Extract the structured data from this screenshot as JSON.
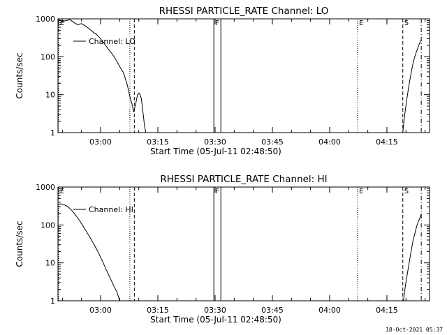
{
  "timestamp": "18-Oct-2021 05:37",
  "chart_data": [
    {
      "type": "line",
      "title": "RHESSI PARTICLE_RATE Channel: LO",
      "xlabel": "Start Time (05-Jul-11 02:48:50)",
      "ylabel": "Counts/sec",
      "yscale": "log",
      "ylim": [
        1,
        1000
      ],
      "xlim": [
        "02:48:50",
        "04:26:10"
      ],
      "x_ticks": [
        "03:00",
        "03:15",
        "03:30",
        "03:45",
        "04:00",
        "04:15"
      ],
      "y_ticks": [
        "1",
        "10",
        "100",
        "1000"
      ],
      "legend": "Channel: LO",
      "markers": [
        {
          "label": "E",
          "time": "02:49:00",
          "style": "dotted"
        },
        {
          "label": "",
          "time": "03:07:40",
          "style": "dotted"
        },
        {
          "label": "",
          "time": "03:08:50",
          "style": "dashed"
        },
        {
          "label": "F",
          "time": "03:29:40",
          "style": "solid"
        },
        {
          "label": "",
          "time": "03:31:30",
          "style": "solid"
        },
        {
          "label": "E",
          "time": "04:07:20",
          "style": "dotted"
        },
        {
          "label": "S",
          "time": "04:19:10",
          "style": "dashed"
        },
        {
          "label": "",
          "time": "04:24:00",
          "style": "dashdot"
        }
      ],
      "series": [
        {
          "segments": [
            {
              "x": [
                "02:48:50",
                "02:50:00",
                "02:51:00",
                "02:52:00",
                "02:53:00",
                "02:54:00",
                "02:55:00",
                "02:56:00",
                "02:57:00",
                "02:58:00",
                "02:59:00",
                "03:00:00",
                "03:01:00",
                "03:02:00",
                "03:03:00",
                "03:04:00",
                "03:05:00",
                "03:06:00",
                "03:07:00",
                "03:07:40",
                "03:08:10",
                "03:08:40",
                "03:09:10",
                "03:09:40",
                "03:10:10",
                "03:10:40",
                "03:11:10",
                "03:11:30",
                "03:11:50"
              ],
              "y": [
                1000,
                850,
                900,
                950,
                800,
                700,
                750,
                650,
                550,
                450,
                380,
                300,
                220,
                160,
                120,
                85,
                55,
                38,
                18,
                9,
                6,
                3.5,
                5.5,
                10,
                11,
                8,
                3,
                1.5,
                1
              ]
            },
            {
              "x": [
                "04:19:10",
                "04:19:40",
                "04:20:10",
                "04:20:40",
                "04:21:10",
                "04:21:40",
                "04:22:10",
                "04:22:40",
                "04:23:10",
                "04:23:40",
                "04:24:00"
              ],
              "y": [
                1,
                3,
                7,
                15,
                30,
                55,
                90,
                130,
                180,
                240,
                280
              ]
            }
          ]
        }
      ]
    },
    {
      "type": "line",
      "title": "RHESSI PARTICLE_RATE Channel: HI",
      "xlabel": "Start Time (05-Jul-11 02:48:50)",
      "ylabel": "Counts/sec",
      "yscale": "log",
      "ylim": [
        1,
        1000
      ],
      "xlim": [
        "02:48:50",
        "04:26:10"
      ],
      "x_ticks": [
        "03:00",
        "03:15",
        "03:30",
        "03:45",
        "04:00",
        "04:15"
      ],
      "y_ticks": [
        "1",
        "10",
        "100",
        "1000"
      ],
      "legend": "Channel: HI",
      "markers": [
        {
          "label": "E",
          "time": "02:49:00",
          "style": "dotted"
        },
        {
          "label": "",
          "time": "03:07:40",
          "style": "dotted"
        },
        {
          "label": "",
          "time": "03:08:50",
          "style": "dashed"
        },
        {
          "label": "F",
          "time": "03:29:40",
          "style": "solid"
        },
        {
          "label": "",
          "time": "03:31:30",
          "style": "solid"
        },
        {
          "label": "E",
          "time": "04:07:20",
          "style": "dotted"
        },
        {
          "label": "S",
          "time": "04:19:10",
          "style": "dashed"
        },
        {
          "label": "",
          "time": "04:24:00",
          "style": "dashdot"
        }
      ],
      "series": [
        {
          "segments": [
            {
              "x": [
                "02:48:50",
                "02:49:30",
                "02:50:30",
                "02:51:30",
                "02:52:30",
                "02:53:30",
                "02:54:30",
                "02:55:30",
                "02:56:30",
                "02:57:30",
                "02:58:30",
                "02:59:30",
                "03:00:30",
                "03:01:30",
                "03:02:30",
                "03:03:30",
                "03:04:10",
                "03:04:40",
                "03:05:00"
              ],
              "y": [
                350,
                360,
                340,
                300,
                240,
                180,
                130,
                90,
                62,
                42,
                28,
                18,
                11,
                6.5,
                4,
                2.4,
                1.8,
                1.3,
                1
              ]
            },
            {
              "x": [
                "04:19:20",
                "04:19:50",
                "04:20:20",
                "04:20:50",
                "04:21:20",
                "04:21:50",
                "04:22:20",
                "04:22:50",
                "04:23:20",
                "04:23:50",
                "04:24:00"
              ],
              "y": [
                1,
                2.5,
                5,
                10,
                20,
                38,
                60,
                95,
                130,
                170,
                200
              ]
            }
          ]
        }
      ]
    }
  ]
}
